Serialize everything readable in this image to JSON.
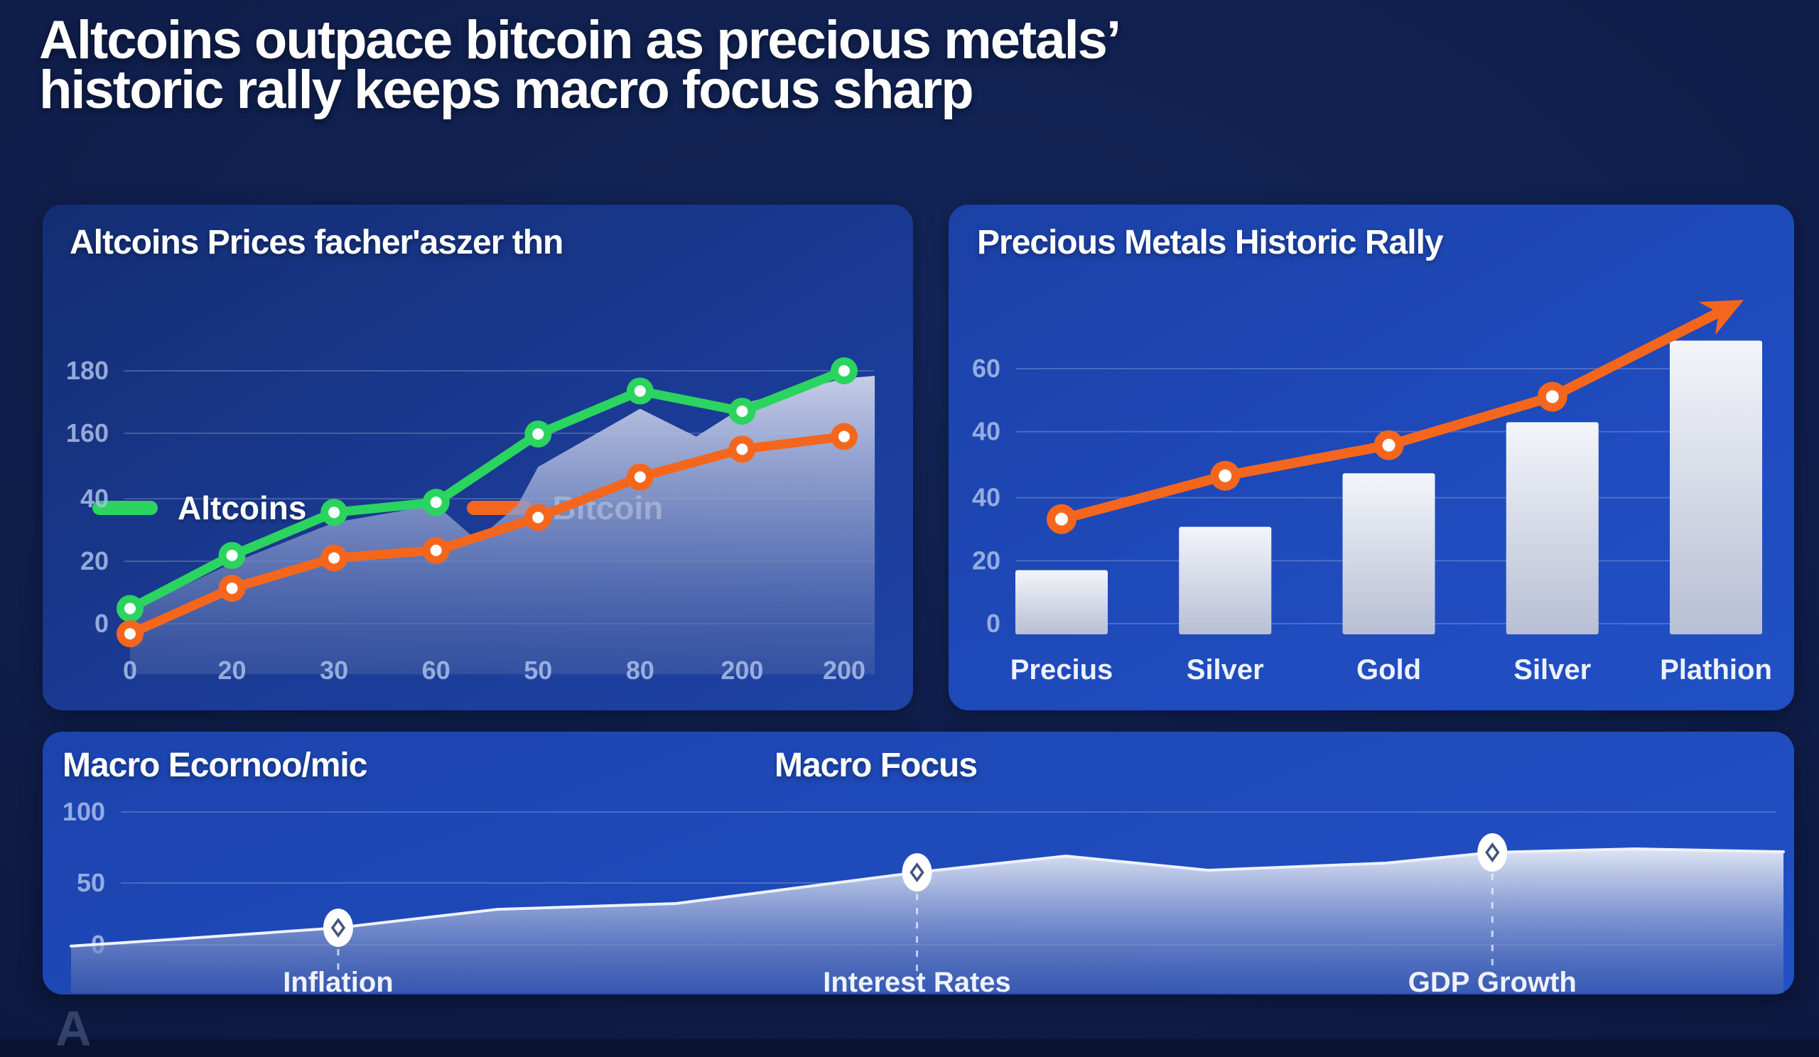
{
  "page": {
    "title_line1": "Altcoins outpace bitcoin as precious metals’",
    "title_line2": "historic rally keeps macro focus sharp",
    "watermark_glyph": "A"
  },
  "colors": {
    "altcoins_green": "#2bd45f",
    "bitcoin_orange": "#f5661d",
    "grid": "rgba(205,218,245,0.25)",
    "tick_text": "rgba(170,190,232,0.85)",
    "bright_label": "#eef2fa",
    "bar_top": "#f3f5f9",
    "bar_bottom": "#b7bfd4",
    "marker_diamond": "#44537a"
  },
  "chart_data": [
    {
      "type": "line",
      "panel": "altcoins",
      "title": "Altcoins Prices facher'aszer thn",
      "legend": [
        {
          "label": "Altcoins",
          "color": "#2bd45f"
        },
        {
          "label": "Bitcoin",
          "color": "#f5661d"
        }
      ],
      "y_ticks": [
        {
          "label": "180",
          "pct": 100
        },
        {
          "label": "160",
          "pct": 75.3
        },
        {
          "label": "40",
          "pct": 49.4
        },
        {
          "label": "20",
          "pct": 24.7
        },
        {
          "label": "0",
          "pct": 0
        }
      ],
      "x_ticks": [
        "0",
        "20",
        "30",
        "60",
        "50",
        "80",
        "200",
        "200"
      ],
      "unit_note": "values_pct = percent of plot height above 0-gridline",
      "series": [
        {
          "name": "Altcoins",
          "color": "#2bd45f",
          "values_pct": [
            6,
            27,
            44,
            48,
            75,
            92,
            84,
            100
          ]
        },
        {
          "name": "Bitcoin",
          "color": "#f5661d",
          "values_pct": [
            -4,
            14,
            26,
            29,
            42,
            58,
            69,
            74
          ]
        }
      ],
      "area_pct": [
        [
          0,
          5
        ],
        [
          1,
          24
        ],
        [
          2,
          40
        ],
        [
          3,
          47
        ],
        [
          3.4,
          33
        ],
        [
          3.8,
          47
        ],
        [
          4,
          62
        ],
        [
          5,
          85
        ],
        [
          5.55,
          74
        ],
        [
          6.1,
          88
        ],
        [
          7,
          97
        ],
        [
          7.3,
          98
        ]
      ],
      "area_floor_pct": -20
    },
    {
      "type": "bar+line",
      "panel": "metals",
      "title": "Precious Metals Historic Rally",
      "y_ticks": [
        {
          "label": "60",
          "pct": 100
        },
        {
          "label": "40",
          "pct": 75.3
        },
        {
          "label": "40",
          "pct": 49.4
        },
        {
          "label": "20",
          "pct": 24.7
        },
        {
          "label": "0",
          "pct": 0
        }
      ],
      "categories": [
        "Precius",
        "Silver",
        "Gold",
        "Silver",
        "Plathion"
      ],
      "bar_values_pct": [
        21,
        38,
        59,
        79,
        111
      ],
      "line_values_pct": [
        41,
        58,
        70,
        89
      ],
      "arrow_tip": {
        "slot": 4.17,
        "pct": 127
      },
      "line_color": "#f5661d"
    },
    {
      "type": "area",
      "panel": "macro",
      "title_left": "Macro Ecornoo/mic",
      "title_right": "Macro Focus",
      "y_ticks": [
        {
          "label": "100",
          "pct": 100
        },
        {
          "label": "50",
          "pct": 46.5
        },
        {
          "label": "0",
          "pct": 0
        }
      ],
      "points_pct": [
        [
          0,
          -1
        ],
        [
          6.2,
          4.3
        ],
        [
          15.6,
          12.8
        ],
        [
          24.9,
          26.7
        ],
        [
          35.3,
          31
        ],
        [
          49.4,
          54.5
        ],
        [
          58.1,
          66.8
        ],
        [
          66.4,
          56.1
        ],
        [
          76.8,
          61.5
        ],
        [
          83,
          69.5
        ],
        [
          91.3,
          72.2
        ],
        [
          100,
          70
        ]
      ],
      "markers": [
        {
          "label": "Inflation",
          "x_pct": 15.6
        },
        {
          "label": "Interest Rates",
          "x_pct": 49.4
        },
        {
          "label": "GDP Growth",
          "x_pct": 83
        }
      ]
    }
  ]
}
